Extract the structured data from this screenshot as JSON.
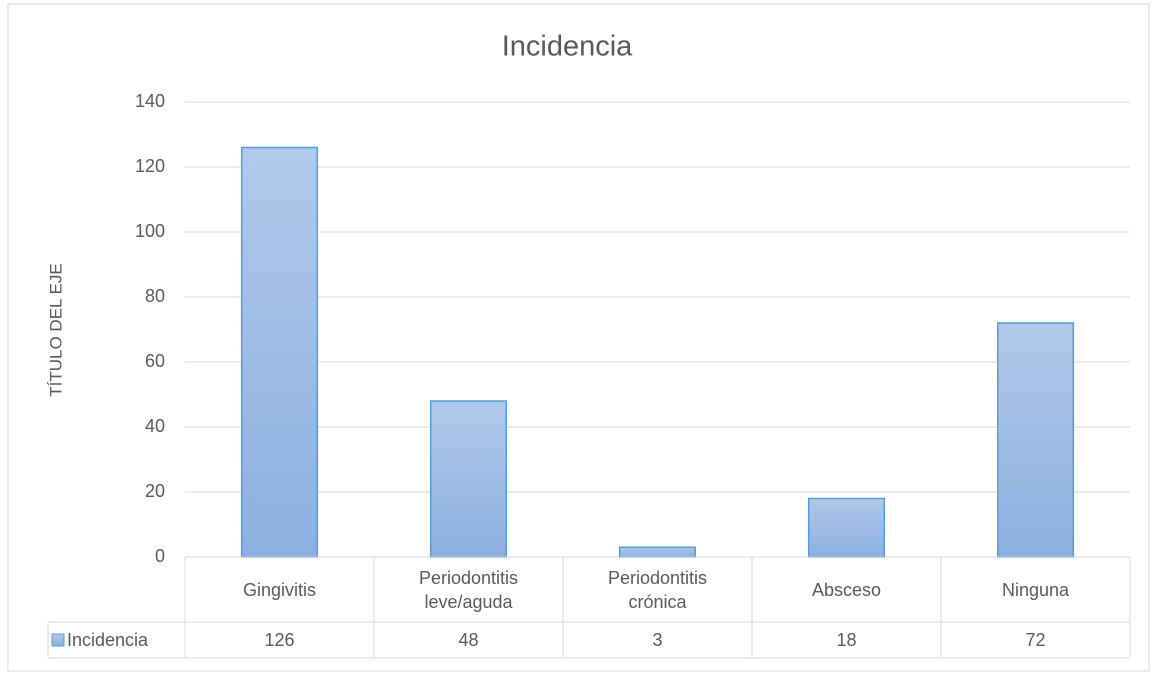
{
  "chart_data": {
    "type": "bar",
    "title": "Incidencia",
    "y_axis_label": "TÍTULO DEL EJE",
    "categories": [
      "Gingivitis",
      "Periodontitis leve/aguda",
      "Periodontitis crónica",
      "Absceso",
      "Ninguna"
    ],
    "series": [
      {
        "name": "Incidencia",
        "color": "#5b9bd5",
        "values": [
          126,
          48,
          3,
          18,
          72
        ]
      }
    ],
    "ylim": [
      0,
      140
    ],
    "yticks": [
      0,
      20,
      40,
      60,
      80,
      100,
      120,
      140
    ],
    "grid": true,
    "data_table": true
  }
}
